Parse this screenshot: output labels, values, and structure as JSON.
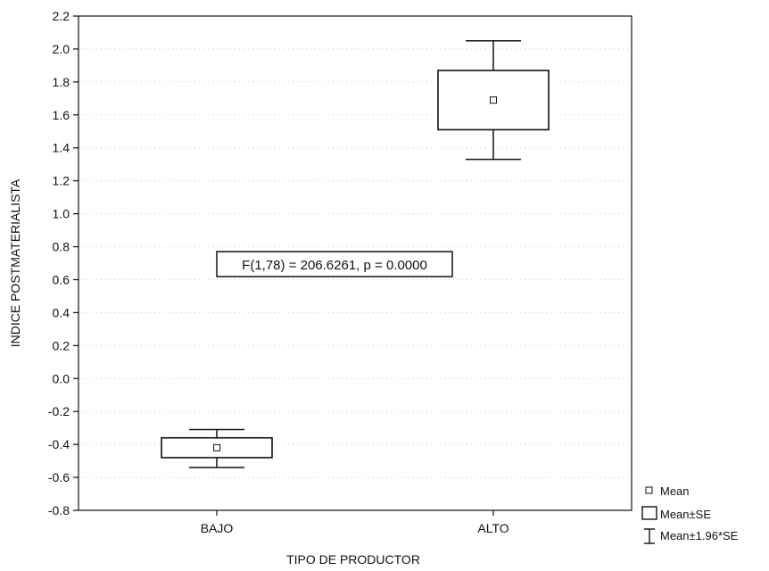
{
  "chart_data": {
    "type": "box",
    "xlabel": "TIPO DE PRODUCTOR",
    "ylabel": "INDICE POSTMATERIALISTA",
    "ylim": [
      -0.8,
      2.2
    ],
    "yticks": [
      "2.2",
      "2.0",
      "1.8",
      "1.6",
      "1.4",
      "1.2",
      "1.0",
      "0.8",
      "0.6",
      "0.4",
      "0.2",
      "0.0",
      "-0.2",
      "-0.4",
      "-0.6",
      "-0.8"
    ],
    "categories": [
      "BAJO",
      "ALTO"
    ],
    "groups": [
      {
        "category": "BAJO",
        "mean": -0.42,
        "se_low": -0.48,
        "se_high": -0.36,
        "ci_low": -0.54,
        "ci_high": -0.31
      },
      {
        "category": "ALTO",
        "mean": 1.69,
        "se_low": 1.51,
        "se_high": 1.87,
        "ci_low": 1.33,
        "ci_high": 2.05
      }
    ],
    "annotation": "F(1,78) = 206.6261, p = 0.0000",
    "legend": {
      "position": "bottom-right",
      "items": [
        "Mean",
        "Mean±SE",
        "Mean±1.96*SE"
      ]
    },
    "grid": "dotted horizontal"
  }
}
